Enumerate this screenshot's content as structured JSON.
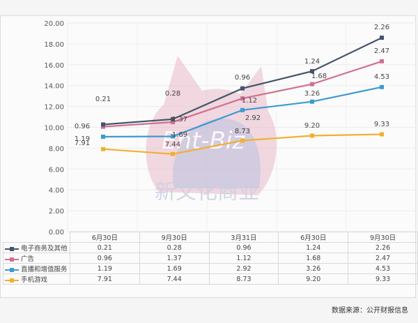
{
  "chart_data": {
    "type": "line",
    "stacked": true,
    "title": "",
    "xlabel": "",
    "ylabel": "",
    "ylim": [
      0,
      20
    ],
    "yticks": [
      "0.00",
      "2.00",
      "4.00",
      "6.00",
      "8.00",
      "10.00",
      "12.00",
      "14.00",
      "16.00",
      "18.00",
      "20.00"
    ],
    "categories": [
      "6月30日",
      "9月30日",
      "3月31日",
      "6月30日",
      "9月30日"
    ],
    "series": [
      {
        "name": "电子商务及其他",
        "color": "#44546a",
        "values": [
          0.21,
          0.28,
          0.96,
          1.24,
          2.26
        ]
      },
      {
        "name": "广告",
        "color": "#d0708f",
        "values": [
          0.96,
          1.37,
          1.12,
          1.68,
          2.47
        ]
      },
      {
        "name": "直播和增值服务",
        "color": "#3d9ad1",
        "values": [
          1.19,
          1.69,
          2.92,
          3.26,
          4.53
        ]
      },
      {
        "name": "手机游戏",
        "color": "#f0b030",
        "values": [
          7.91,
          7.44,
          8.73,
          9.2,
          9.33
        ]
      }
    ],
    "grid": true,
    "legend_position": "data-table-bottom"
  },
  "table": {
    "headers": [
      "6月30日",
      "9月30日",
      "3月31日",
      "6月30日",
      "9月30日"
    ],
    "rows": [
      {
        "label": "电子商务及其他",
        "values": [
          "0.21",
          "0.28",
          "0.96",
          "1.24",
          "2.26"
        ]
      },
      {
        "label": "广告",
        "values": [
          "0.96",
          "1.37",
          "1.12",
          "1.68",
          "2.47"
        ]
      },
      {
        "label": "直播和增值服务",
        "values": [
          "1.19",
          "1.69",
          "2.92",
          "3.26",
          "4.53"
        ]
      },
      {
        "label": "手机游戏",
        "values": [
          "7.91",
          "7.44",
          "8.73",
          "9.20",
          "9.33"
        ]
      }
    ]
  },
  "watermark": {
    "logo_text": "Ent-Biz",
    "text": "新文化商业"
  },
  "source": "数据来源：公开财报信息"
}
